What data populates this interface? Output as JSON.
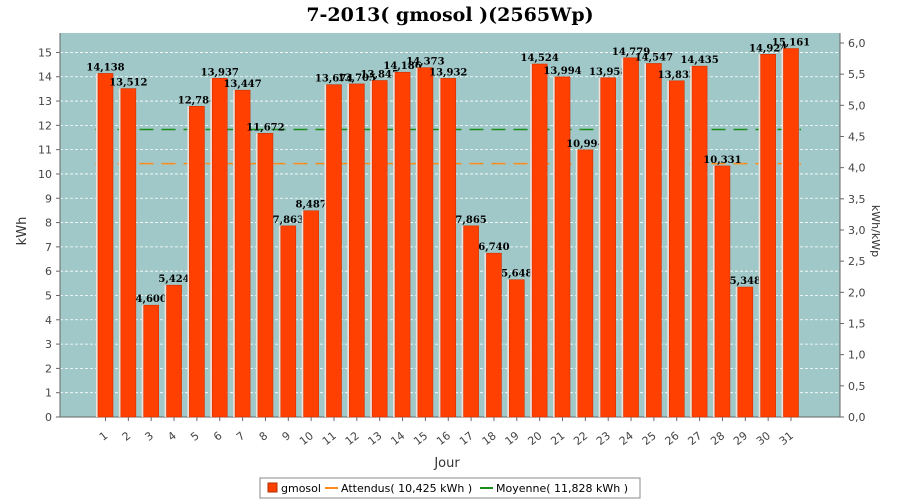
{
  "chart_data": {
    "type": "bar",
    "title": "7-2013( gmosol )(2565Wp)",
    "xlabel": "Jour",
    "ylabel": "kWh",
    "y2label": "kWh/kWp",
    "ylim": [
      0,
      15.8
    ],
    "yticks": [
      0,
      1,
      2,
      3,
      4,
      5,
      6,
      7,
      8,
      9,
      10,
      11,
      12,
      13,
      14,
      15
    ],
    "y2lim": [
      0,
      6.16
    ],
    "y2ticks": [
      "0,0",
      "0,5",
      "1,0",
      "1,5",
      "2,0",
      "2,5",
      "3,0",
      "3,5",
      "4,0",
      "4,5",
      "5,0",
      "5,5",
      "6,0"
    ],
    "y2values": [
      0,
      0.5,
      1.0,
      1.5,
      2.0,
      2.5,
      3.0,
      3.5,
      4.0,
      4.5,
      5.0,
      5.5,
      6.0
    ],
    "grid": true,
    "legend_position": "bottom",
    "categories": [
      "1",
      "2",
      "3",
      "4",
      "5",
      "6",
      "7",
      "8",
      "9",
      "10",
      "11",
      "12",
      "13",
      "14",
      "15",
      "16",
      "17",
      "18",
      "19",
      "20",
      "21",
      "22",
      "23",
      "24",
      "25",
      "26",
      "27",
      "28",
      "29",
      "30",
      "31"
    ],
    "series": [
      {
        "name": "gmosol",
        "color": "#ff4000",
        "values": [
          14.138,
          13.512,
          4.6,
          5.424,
          12.784,
          13.937,
          13.447,
          11.672,
          7.863,
          8.487,
          13.674,
          13.705,
          13.845,
          14.186,
          14.373,
          13.932,
          7.865,
          6.74,
          5.648,
          14.524,
          13.994,
          10.994,
          13.958,
          14.779,
          14.547,
          13.833,
          14.435,
          10.331,
          5.348,
          14.924,
          15.161
        ],
        "labels": [
          "14,138",
          "13,512",
          "4,600",
          "5,424",
          "12,784",
          "13,937",
          "13,447",
          "11,672",
          "7,863",
          "8,487",
          "13,674",
          "13,705",
          "13,845",
          "14,186",
          "14,373",
          "13,932",
          "7,865",
          "6,740",
          "5,648",
          "14,524",
          "13,994",
          "10,994",
          "13,958",
          "14,779",
          "14,547",
          "13,833",
          "14,435",
          "10,331",
          "5,348",
          "14,924",
          "15,161"
        ]
      }
    ],
    "reference_lines": [
      {
        "name": "Attendus( 10,425 kWh )",
        "value": 10.425,
        "color": "#ff8c1a"
      },
      {
        "name": "Moyenne( 11,828 kWh )",
        "value": 11.828,
        "color": "#1a8c1a"
      }
    ],
    "colors": {
      "plot_bg": "#a0c8c8",
      "grid": "#ffffff"
    }
  }
}
